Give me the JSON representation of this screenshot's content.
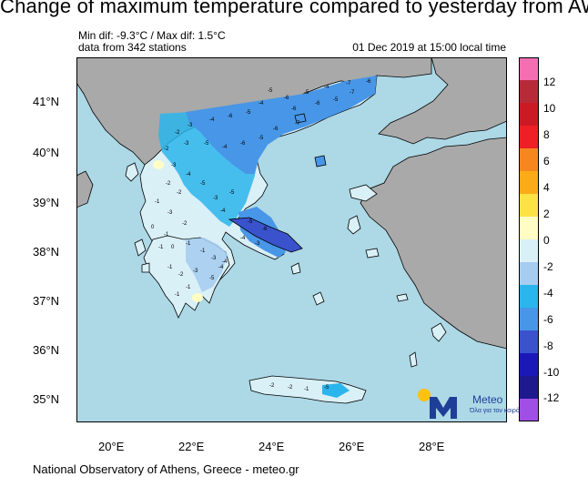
{
  "title": "Change of maximum temperature compared to yesterday from AWS",
  "stats_line": "Min dif: -9.3°C / Max dif: 1.5°C",
  "stations_line": "data from 342 stations",
  "datetime_line": "01 Dec 2019 at 15:00 local time",
  "footer": "National Observatory of Athens, Greece - meteo.gr",
  "latitude_labels": [
    "41°N",
    "40°N",
    "39°N",
    "38°N",
    "37°N",
    "36°N",
    "35°N"
  ],
  "longitude_labels": [
    "20°E",
    "22°E",
    "24°E",
    "26°E",
    "28°E"
  ],
  "colorbar": {
    "labels": [
      "12",
      "10",
      "8",
      "6",
      "4",
      "2",
      "0",
      "-2",
      "-4",
      "-6",
      "-8",
      "-10",
      "-12"
    ],
    "colors": [
      "#f36fb2",
      "#b72b38",
      "#cc1a25",
      "#ee1f25",
      "#f6871f",
      "#fbab18",
      "#fde246",
      "#fffdc4",
      "#daf0f7",
      "#a6cdf0",
      "#2ab5ec",
      "#4896e7",
      "#3a52cc",
      "#1c18b8",
      "#1e1a8d",
      "#a04fe6"
    ]
  },
  "colors": {
    "sea": "#add8e6",
    "land": "#a9a9a9",
    "greece_base": "#daf0f7",
    "logo_blue": "#1e3f98",
    "logo_sun": "#ffc20e"
  },
  "logo": {
    "name": "Meteo",
    "tagline": "Όλα για τον καιρό"
  },
  "station_values": [
    "-5",
    "-6",
    "-5",
    "-4",
    "-7",
    "-6",
    "-6",
    "-5",
    "-7",
    "-6",
    "-4",
    "-5",
    "-6",
    "-4",
    "-3",
    "-2",
    "-3",
    "-2",
    "-5",
    "-4",
    "-6",
    "-5",
    "-6",
    "-7",
    "-3",
    "-4",
    "-5",
    "-2",
    "-2",
    "-1",
    "-3",
    "0",
    "-1",
    "-2",
    "-3",
    "-5",
    "-4",
    "-1",
    "0",
    "-1",
    "-1",
    "-3",
    "-4",
    "-1",
    "-2",
    "-3",
    "-5",
    "-4",
    "-1",
    "-1",
    "-5",
    "-6",
    "-4",
    "-2",
    "-2",
    "-1",
    "-5",
    "-3"
  ]
}
